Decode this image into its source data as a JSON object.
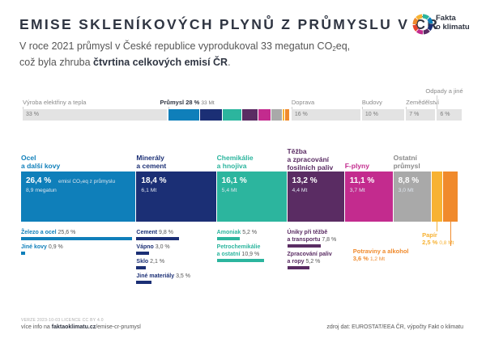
{
  "title": "EMISE SKLENÍKOVÝCH PLYNŮ Z PRŮMYSLU V ČR",
  "subtitle": {
    "line1_pre": "V roce 2021 průmysl v České republice vyprodukoval 33 megatun CO",
    "line1_sub": "2",
    "line1_post": "eq,",
    "line2_pre": "což byla zhruba ",
    "line2_highlight": "čtvrtina celkových emisí ČR",
    "line2_post": "."
  },
  "logo": {
    "line1": "Fakta",
    "line2": "o klimatu",
    "icon": "colorful-ring-icon"
  },
  "colors": {
    "ocel": "#0f7fba",
    "mineraly": "#1b2f75",
    "chemikalie": "#2cb59e",
    "tezba": "#5a2c63",
    "fplyny": "#c32b8e",
    "ostatni": "#a9a9a9",
    "papir": "#f7b233",
    "potraviny": "#f08a2c",
    "neutral": "#e3e3e3"
  },
  "chart_data": [
    {
      "type": "bar",
      "categories": [
        "Výroba elektřiny a tepla",
        "Průmysl",
        "Doprava",
        "Budovy",
        "Zemědělství",
        "Odpady a jiné"
      ],
      "values": [
        33,
        28,
        16,
        10,
        7,
        6
      ],
      "value_labels": [
        "33 %",
        "28 %",
        "16 %",
        "10 %",
        "7 %",
        "6 %"
      ],
      "industry_mt": "33 Mt",
      "stacked": true
    },
    {
      "type": "bar",
      "categories": [
        "Ocel a další kovy",
        "Minerály a cement",
        "Chemikálie a hnojiva",
        "Těžba a zpracování fosilních paliv",
        "F-plyny",
        "Ostatní průmysl"
      ],
      "values": [
        26.4,
        18.4,
        16.1,
        13.2,
        11.1,
        8.8
      ],
      "value_labels": [
        "26,4 %",
        "18,4 %",
        "16,1 %",
        "13,2 %",
        "11,1 %",
        "8,8 %"
      ],
      "mt_labels": [
        "8,9 megatun",
        "6,1 Mt",
        "5,4 Mt",
        "4,4 Mt",
        "3,7 Mt",
        "3,0 Mt"
      ],
      "first_unit_label": "emisí CO₂eq z průmyslu",
      "small_categories": [
        "Papír",
        "Potraviny a alkohol"
      ],
      "small_values": [
        2.5,
        3.6
      ],
      "small_value_labels": [
        "2,5 %",
        "3,6 %"
      ],
      "small_mt_labels": [
        "0,8 Mt",
        "1,2 Mt"
      ],
      "subcategories": {
        "ocel": [
          {
            "name": "Železo a ocel",
            "value": 25.6,
            "label": "25,6 %"
          },
          {
            "name": "Jiné kovy",
            "value": 0.9,
            "label": "0,9 %"
          }
        ],
        "mineraly": [
          {
            "name": "Cement",
            "value": 9.8,
            "label": "9,8 %"
          },
          {
            "name": "Vápno",
            "value": 3.0,
            "label": "3,0 %"
          },
          {
            "name": "Sklo",
            "value": 2.1,
            "label": "2,1 %"
          },
          {
            "name": "Jiné materiály",
            "value": 3.5,
            "label": "3,5 %"
          }
        ],
        "chemikalie": [
          {
            "name": "Amoniak",
            "value": 5.2,
            "label": "5,2 %"
          },
          {
            "name": "Petrochemikálie a ostatní",
            "value": 10.9,
            "label": "10,9 %"
          }
        ],
        "tezba": [
          {
            "name": "Úniky při těžbě a transportu",
            "value": 7.8,
            "label": "7,8 %"
          },
          {
            "name": "Zpracování paliv a ropy",
            "value": 5.2,
            "label": "5,2 %"
          }
        ]
      }
    }
  ],
  "labels": {
    "top": [
      "Výroba elektřiny a tepla",
      "Průmysl",
      "Doprava",
      "Budovy",
      "Zemědělství",
      "Odpady a jiné"
    ],
    "top_values": [
      "33 %",
      "28 %",
      "16 %",
      "10 %",
      "7 %",
      "6 %"
    ],
    "cat_heads": {
      "ocel": [
        "Ocel",
        "a další kovy"
      ],
      "mineraly": [
        "Minerály",
        "a cement"
      ],
      "chemikalie": [
        "Chemikálie",
        "a hnojiva"
      ],
      "tezba": [
        "Těžba",
        "a zpracování",
        "fosilních paliv"
      ],
      "fplyny": [
        "F-plyny"
      ],
      "ostatni": [
        "Ostatní",
        "průmysl"
      ]
    },
    "sub": {
      "ocel": [
        "Železo a ocel",
        "Jiné kovy"
      ],
      "mineraly": [
        "Cement",
        "Vápno",
        "Sklo",
        "Jiné materiály"
      ],
      "chem1": "Amoniak",
      "chem2": [
        "Petrochemikálie",
        "a ostatní"
      ],
      "tezba1": [
        "Úniky při těžbě",
        "a transportu"
      ],
      "tezba2": [
        "Zpracování paliv",
        "a ropy"
      ]
    },
    "sub_values": {
      "ocel": [
        "25,6 %",
        "0,9 %"
      ],
      "mineraly": [
        "9,8 %",
        "3,0 %",
        "2,1 %",
        "3,5 %"
      ],
      "chem": [
        "5,2 %",
        "10,9 %"
      ],
      "tezba": [
        "7,8 %",
        "5,2 %"
      ]
    },
    "small": {
      "papir": "Papír",
      "papir_pct": "2,5 %",
      "papir_mt": "0,8 Mt",
      "potraviny": "Potraviny a alkohol",
      "potraviny_pct": "3,6 %",
      "potraviny_mt": "1,2 Mt"
    }
  },
  "footer": {
    "meta": "VERZE 2023-10-03   LICENCE CC BY 4.0",
    "left_pre": "více info na ",
    "left_bold": "faktaoklimatu.cz",
    "left_post": "/emise-cr-prumysl",
    "right": "zdroj dat: EUROSTAT/EEA ČR, výpočty Fakt o klimatu"
  }
}
